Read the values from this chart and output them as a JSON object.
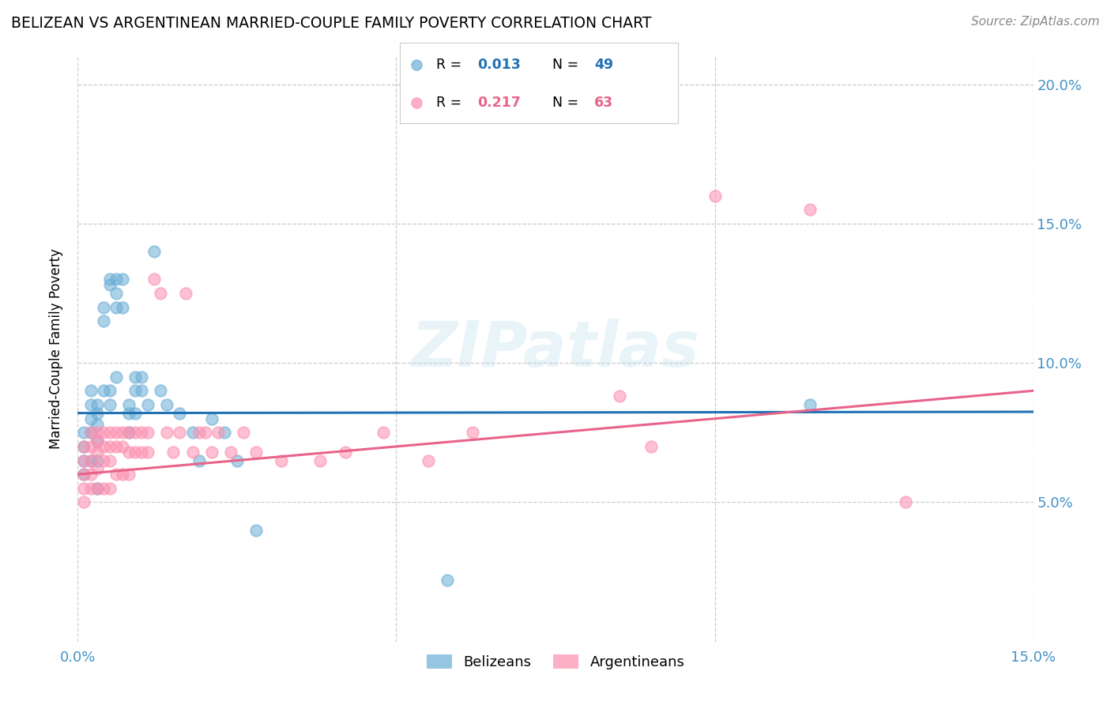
{
  "title": "BELIZEAN VS ARGENTINEAN MARRIED-COUPLE FAMILY POVERTY CORRELATION CHART",
  "source_text": "Source: ZipAtlas.com",
  "ylabel": "Married-Couple Family Poverty",
  "xmin": 0.0,
  "xmax": 0.15,
  "ymin": 0.0,
  "ymax": 0.21,
  "ytick_labels": [
    "5.0%",
    "10.0%",
    "15.0%",
    "20.0%"
  ],
  "ytick_values": [
    0.05,
    0.1,
    0.15,
    0.2
  ],
  "belizean_color": "#6baed6",
  "argentinean_color": "#fc8faf",
  "belizean_line_color": "#2171b5",
  "argentinean_line_color": "#e8638a",
  "belizean_R": "0.013",
  "belizean_N": "49",
  "argentinean_R": "0.217",
  "argentinean_N": "63",
  "legend_label_1": "Belizeans",
  "legend_label_2": "Argentineans",
  "watermark_text": "ZIPatlas",
  "bel_intercept": 0.082,
  "bel_slope_val": 0.003,
  "arg_intercept": 0.06,
  "arg_slope_val": 0.2,
  "belizean_x": [
    0.001,
    0.001,
    0.001,
    0.001,
    0.002,
    0.002,
    0.002,
    0.002,
    0.002,
    0.003,
    0.003,
    0.003,
    0.003,
    0.003,
    0.003,
    0.004,
    0.004,
    0.004,
    0.005,
    0.005,
    0.005,
    0.005,
    0.006,
    0.006,
    0.006,
    0.006,
    0.007,
    0.007,
    0.008,
    0.008,
    0.008,
    0.009,
    0.009,
    0.009,
    0.01,
    0.01,
    0.011,
    0.012,
    0.013,
    0.014,
    0.016,
    0.018,
    0.019,
    0.021,
    0.023,
    0.025,
    0.028,
    0.058,
    0.115
  ],
  "belizean_y": [
    0.075,
    0.07,
    0.065,
    0.06,
    0.09,
    0.085,
    0.08,
    0.075,
    0.065,
    0.085,
    0.082,
    0.078,
    0.072,
    0.065,
    0.055,
    0.12,
    0.115,
    0.09,
    0.13,
    0.128,
    0.09,
    0.085,
    0.13,
    0.125,
    0.12,
    0.095,
    0.13,
    0.12,
    0.085,
    0.082,
    0.075,
    0.095,
    0.09,
    0.082,
    0.095,
    0.09,
    0.085,
    0.14,
    0.09,
    0.085,
    0.082,
    0.075,
    0.065,
    0.08,
    0.075,
    0.065,
    0.04,
    0.022,
    0.085
  ],
  "argentinean_x": [
    0.001,
    0.001,
    0.001,
    0.001,
    0.001,
    0.002,
    0.002,
    0.002,
    0.002,
    0.002,
    0.003,
    0.003,
    0.003,
    0.003,
    0.003,
    0.004,
    0.004,
    0.004,
    0.004,
    0.005,
    0.005,
    0.005,
    0.005,
    0.006,
    0.006,
    0.006,
    0.007,
    0.007,
    0.007,
    0.008,
    0.008,
    0.008,
    0.009,
    0.009,
    0.01,
    0.01,
    0.011,
    0.011,
    0.012,
    0.013,
    0.014,
    0.015,
    0.016,
    0.017,
    0.018,
    0.019,
    0.02,
    0.021,
    0.022,
    0.024,
    0.026,
    0.028,
    0.032,
    0.038,
    0.042,
    0.048,
    0.055,
    0.062,
    0.085,
    0.09,
    0.1,
    0.115,
    0.13
  ],
  "argentinean_y": [
    0.07,
    0.065,
    0.06,
    0.055,
    0.05,
    0.075,
    0.07,
    0.065,
    0.06,
    0.055,
    0.075,
    0.072,
    0.068,
    0.062,
    0.055,
    0.075,
    0.07,
    0.065,
    0.055,
    0.075,
    0.07,
    0.065,
    0.055,
    0.075,
    0.07,
    0.06,
    0.075,
    0.07,
    0.06,
    0.075,
    0.068,
    0.06,
    0.075,
    0.068,
    0.075,
    0.068,
    0.075,
    0.068,
    0.13,
    0.125,
    0.075,
    0.068,
    0.075,
    0.125,
    0.068,
    0.075,
    0.075,
    0.068,
    0.075,
    0.068,
    0.075,
    0.068,
    0.065,
    0.065,
    0.068,
    0.075,
    0.065,
    0.075,
    0.088,
    0.07,
    0.16,
    0.155,
    0.05
  ]
}
